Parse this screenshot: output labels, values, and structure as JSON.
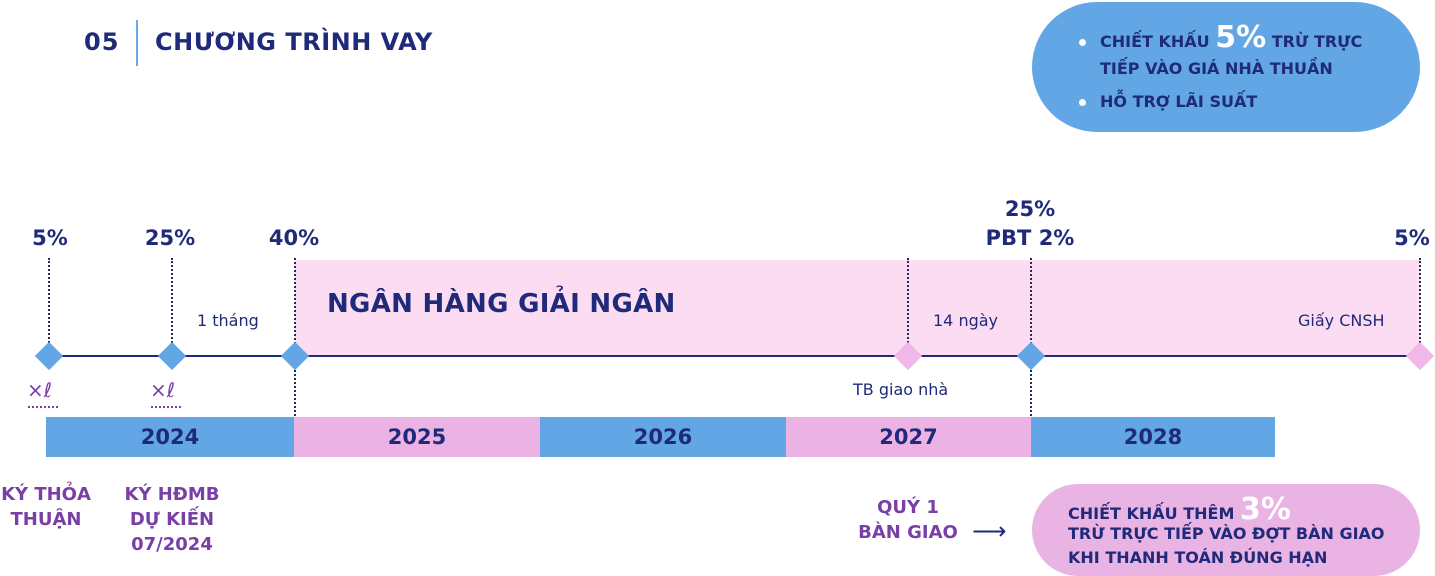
{
  "header": {
    "number": "05",
    "title": "CHƯƠNG TRÌNH VAY"
  },
  "promo_top": {
    "line1_prefix": "CHIẾT KHẤU",
    "line1_pct": "5%",
    "line1_suffix": "TRỪ TRỰC",
    "line2": "TIẾP VÀO GIÁ NHÀ THUẦN",
    "line3": "HỖ TRỢ LÃI SUẤT"
  },
  "milestones": {
    "m1_pct": "5%",
    "m2_pct": "25%",
    "m3_pct": "40%",
    "m4_pct_top": "25%",
    "m4_pct_bottom": "PBT 2%",
    "m5_pct": "5%"
  },
  "zones": {
    "bank": "NGÂN HÀNG GIẢI NGÂN",
    "one_month": "1 tháng",
    "fourteen_days": "14 ngày",
    "cnsh": "Giấy CNSH",
    "tb_handover": "TB giao nhà"
  },
  "years": [
    "2024",
    "2025",
    "2026",
    "2027",
    "2028"
  ],
  "signature_mark": "×ℓ",
  "bottom_labels": {
    "sign_agreement_1": "KÝ THỎA",
    "sign_agreement_2": "THUẬN",
    "sign_hdmb_1": "KÝ HĐMB",
    "sign_hdmb_2": "DỰ KIẾN",
    "sign_hdmb_3": "07/2024",
    "handover_1": "QUÝ 1",
    "handover_2": "BÀN GIAO",
    "arrow": "⟶"
  },
  "promo_bottom": {
    "line1_prefix": "CHIẾT KHẤU THÊM",
    "line1_pct": "3%",
    "line2": "TRỪ TRỰC TIẾP VÀO ĐỢT BÀN GIAO",
    "line3": "KHI THANH TOÁN ĐÚNG HẠN"
  },
  "colors": {
    "navy": "#1f2a7a",
    "blue": "#62a6e6",
    "pink_light": "#fbdcf3",
    "pink": "#ebb3e3",
    "purple": "#7a3fa6"
  }
}
